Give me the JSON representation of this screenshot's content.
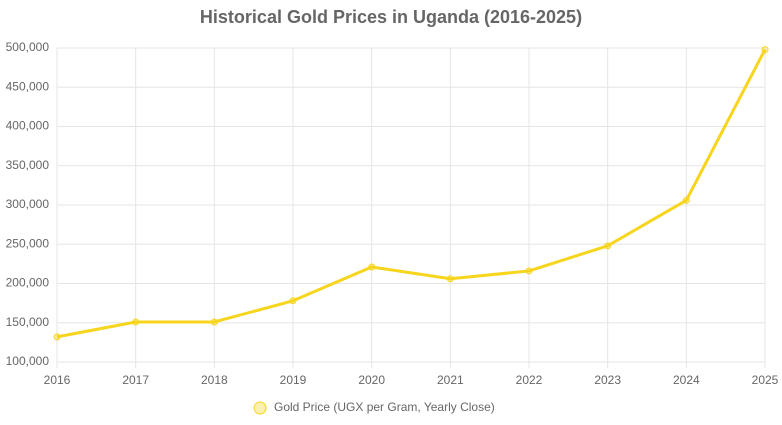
{
  "chart_data": {
    "type": "line",
    "title": "Historical Gold Prices in Uganda (2016-2025)",
    "categories": [
      "2016",
      "2017",
      "2018",
      "2019",
      "2020",
      "2021",
      "2022",
      "2023",
      "2024",
      "2025"
    ],
    "series": [
      {
        "name": "Gold Price (UGX per Gram, Yearly Close)",
        "color": "#f7d51d",
        "values": [
          132000,
          151000,
          151000,
          178000,
          221000,
          206000,
          216000,
          248000,
          306000,
          498000
        ]
      }
    ],
    "ylim": [
      100000,
      500000
    ],
    "yticks": [
      {
        "value": 100000,
        "label": "100,000"
      },
      {
        "value": 150000,
        "label": "150,000"
      },
      {
        "value": 200000,
        "label": "200,000"
      },
      {
        "value": 250000,
        "label": "250,000"
      },
      {
        "value": 300000,
        "label": "300,000"
      },
      {
        "value": 350000,
        "label": "350,000"
      },
      {
        "value": 400000,
        "label": "400,000"
      },
      {
        "value": 450000,
        "label": "450,000"
      },
      {
        "value": 500000,
        "label": "500,000"
      }
    ],
    "grid": true,
    "legend": "bottom"
  }
}
